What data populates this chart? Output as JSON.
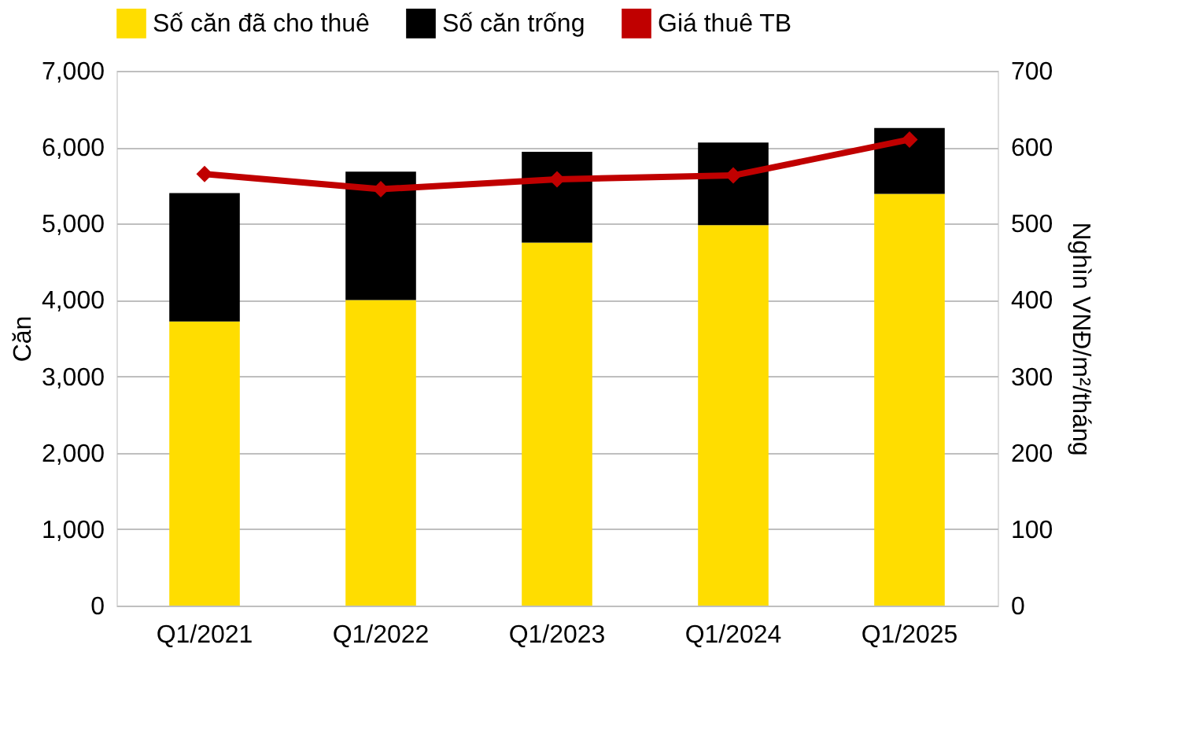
{
  "chart_data": {
    "type": "bar",
    "stacked": true,
    "categories": [
      "Q1/2021",
      "Q1/2022",
      "Q1/2023",
      "Q1/2024",
      "Q1/2025"
    ],
    "series": [
      {
        "name": "Số căn đã cho thuê",
        "color": "#ffdd00",
        "values": [
          3720,
          4000,
          4750,
          4980,
          5390
        ]
      },
      {
        "name": "Số căn trống",
        "color": "#000000",
        "values": [
          1680,
          1680,
          1190,
          1080,
          860
        ]
      },
      {
        "name": "Giá thuê TB",
        "color": "#c00000",
        "type": "line",
        "axis": "y2",
        "marker": "diamond",
        "values": [
          565,
          545,
          558,
          563,
          610
        ]
      }
    ],
    "ylabel": "Căn",
    "y2label": "Nghìn VNĐ/m²/tháng",
    "ylim": [
      0,
      7000
    ],
    "yticks": [
      0,
      {
        "value": 1000,
        "label": "1,000"
      },
      {
        "value": 2000,
        "label": "2,000"
      },
      {
        "value": 3000,
        "label": "3,000"
      },
      {
        "value": 4000,
        "label": "4,000"
      },
      {
        "value": 5000,
        "label": "5,000"
      },
      {
        "value": 6000,
        "label": "6,000"
      },
      {
        "value": 7000,
        "label": "7,000"
      }
    ],
    "y2lim": [
      0,
      700
    ],
    "y2ticks": [
      0,
      100,
      200,
      300,
      400,
      500,
      600,
      700
    ],
    "grid": "y",
    "legend": "top"
  }
}
